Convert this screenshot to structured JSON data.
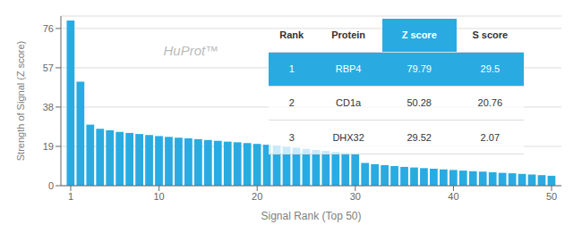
{
  "chart_data": {
    "type": "bar",
    "xlabel": "Signal Rank (Top 50)",
    "ylabel": "Strength of Signal (Z score)",
    "x": [
      1,
      2,
      3,
      4,
      5,
      6,
      7,
      8,
      9,
      10,
      11,
      12,
      13,
      14,
      15,
      16,
      17,
      18,
      19,
      20,
      21,
      22,
      23,
      24,
      25,
      26,
      27,
      28,
      29,
      30,
      31,
      32,
      33,
      34,
      35,
      36,
      37,
      38,
      39,
      40,
      41,
      42,
      43,
      44,
      45,
      46,
      47,
      48,
      49,
      50
    ],
    "values": [
      79.79,
      50.28,
      29.52,
      27.5,
      26.8,
      26.0,
      25.5,
      25.0,
      24.5,
      24.0,
      23.6,
      23.2,
      22.9,
      22.5,
      22.1,
      21.7,
      21.3,
      21.0,
      20.6,
      20.2,
      19.8,
      19.4,
      18.8,
      18.3,
      17.8,
      17.3,
      16.8,
      16.3,
      15.8,
      15.3,
      11.0,
      10.4,
      9.9,
      9.5,
      9.1,
      8.8,
      8.5,
      8.2,
      7.9,
      7.6,
      7.3,
      7.0,
      6.8,
      6.5,
      6.2,
      6.0,
      5.7,
      5.4,
      5.1,
      4.8
    ],
    "color": "#29ABE2",
    "xlim": [
      0,
      51
    ],
    "ylim": [
      0,
      82
    ],
    "xticks": [
      1,
      10,
      20,
      30,
      40,
      50
    ],
    "yticks": [
      0,
      19,
      38,
      57,
      76
    ],
    "grid": true,
    "annotation": "HuProt™",
    "table": {
      "headers": [
        "Rank",
        "Protein",
        "Z score",
        "S score"
      ],
      "rows": [
        [
          "1",
          "RBP4",
          "79.79",
          "29.5"
        ],
        [
          "2",
          "CD1a",
          "50.28",
          "20.76"
        ],
        [
          "3",
          "DHX32",
          "29.52",
          "2.07"
        ]
      ]
    }
  }
}
